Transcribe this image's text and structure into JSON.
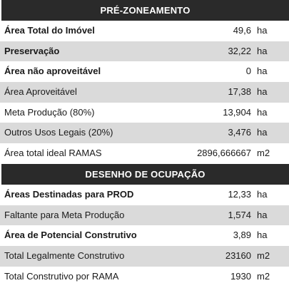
{
  "sections": [
    {
      "title": "PRÉ-ZONEAMENTO",
      "rows": [
        {
          "label": "Área Total do Imóvel",
          "value": "49,6",
          "unit": "ha",
          "bold": true
        },
        {
          "label": "Preservação",
          "value": "32,22",
          "unit": "ha",
          "bold": true
        },
        {
          "label": "Área não aproveitável",
          "value": "0",
          "unit": "ha",
          "bold": true
        },
        {
          "label": "Área Aproveitável",
          "value": "17,38",
          "unit": "ha",
          "bold": false
        },
        {
          "label": "Meta Produção (80%)",
          "value": "13,904",
          "unit": "ha",
          "bold": false
        },
        {
          "label": "Outros Usos Legais (20%)",
          "value": "3,476",
          "unit": "ha",
          "bold": false
        },
        {
          "label": "Área total ideal RAMAS",
          "value": "2896,666667",
          "unit": "m2",
          "bold": false
        }
      ]
    },
    {
      "title": "DESENHO DE OCUPAÇÃO",
      "rows": [
        {
          "label": "Áreas Destinadas para PROD",
          "value": "12,33",
          "unit": "ha",
          "bold": true
        },
        {
          "label": "Faltante para Meta Produção",
          "value": "1,574",
          "unit": "ha",
          "bold": false
        },
        {
          "label": "Área de Potencial Construtivo",
          "value": "3,89",
          "unit": "ha",
          "bold": true
        },
        {
          "label": "Total Legalmente Construtivo",
          "value": "23160",
          "unit": "m2",
          "bold": false
        },
        {
          "label": "Total Construtivo por RAMA",
          "value": "1930",
          "unit": "m2",
          "bold": false
        }
      ]
    }
  ]
}
